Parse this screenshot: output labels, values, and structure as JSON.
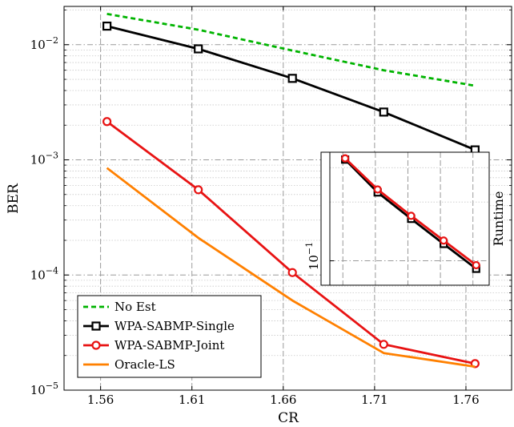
{
  "chart_data": {
    "type": "line",
    "xlabel": "CR",
    "ylabel": "BER",
    "xlim": [
      1.54,
      1.785
    ],
    "ylim": [
      1e-05,
      0.0215
    ],
    "yscale": "log",
    "grid": true,
    "x_ticks": [
      "1.56",
      "1.61",
      "1.66",
      "1.71",
      "1.76"
    ],
    "x_tick_values": [
      1.56,
      1.61,
      1.66,
      1.71,
      1.76
    ],
    "y_ticks": [
      {
        "base": "10",
        "exp": "−2",
        "value": 0.01
      },
      {
        "base": "10",
        "exp": "−3",
        "value": 0.001
      },
      {
        "base": "10",
        "exp": "−4",
        "value": 0.0001
      },
      {
        "base": "10",
        "exp": "−5",
        "value": 1e-05
      }
    ],
    "legend_position": "bottom-left",
    "series": [
      {
        "name": "No Est",
        "color": "#00b400",
        "style": "dashed",
        "marker": "none",
        "x": [
          1.5635,
          1.6135,
          1.665,
          1.715,
          1.765
        ],
        "y": [
          0.0185,
          0.0135,
          0.0089,
          0.006,
          0.0044
        ]
      },
      {
        "name": "WPA-SABMP-Single",
        "color": "#000000",
        "style": "solid",
        "marker": "square",
        "x": [
          1.5635,
          1.6135,
          1.665,
          1.715,
          1.765
        ],
        "y": [
          0.0145,
          0.0092,
          0.0051,
          0.0026,
          0.00122
        ]
      },
      {
        "name": "WPA-SABMP-Joint",
        "color": "#e81313",
        "style": "solid",
        "marker": "circle",
        "x": [
          1.5635,
          1.6135,
          1.665,
          1.715,
          1.765
        ],
        "y": [
          0.00215,
          0.00055,
          0.000105,
          2.5e-05,
          1.7e-05
        ]
      },
      {
        "name": "Oracle-LS",
        "color": "#ff8000",
        "style": "solid",
        "marker": "none",
        "x": [
          1.5635,
          1.6135,
          1.665,
          1.715,
          1.765
        ],
        "y": [
          0.00085,
          0.00021,
          6e-05,
          2.1e-05,
          1.6e-05
        ]
      }
    ],
    "inset": {
      "ylabel": "Runtime",
      "y_tick": {
        "base": "10",
        "exp": "−1"
      },
      "yscale": "log",
      "grid": true,
      "series": [
        {
          "name": "WPA-SABMP-Single",
          "color": "#000000",
          "marker": "square",
          "x": [
            1.5635,
            1.6135,
            1.665,
            1.715,
            1.765
          ],
          "y": [
            0.33,
            0.224,
            0.164,
            0.122,
            0.091
          ]
        },
        {
          "name": "WPA-SABMP-Joint",
          "color": "#e81313",
          "marker": "circle",
          "x": [
            1.5635,
            1.6135,
            1.665,
            1.715,
            1.765
          ],
          "y": [
            0.335,
            0.232,
            0.17,
            0.127,
            0.095
          ]
        }
      ]
    }
  }
}
